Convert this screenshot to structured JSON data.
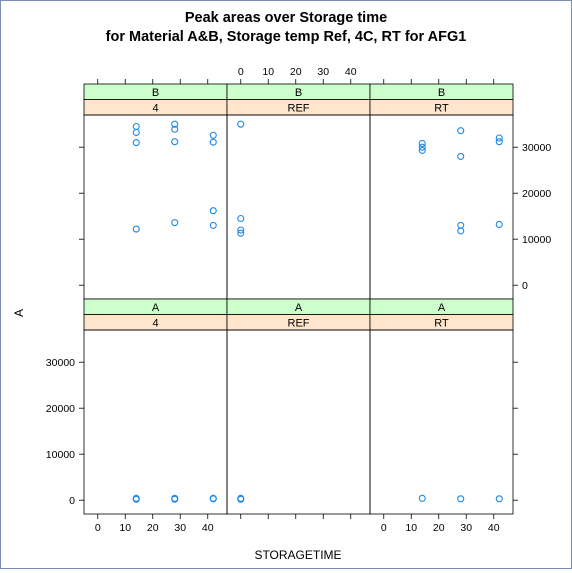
{
  "chart_data": {
    "type": "scatter",
    "title_line1": "Peak areas over Storage time",
    "title_line2": "for Material A&B, Storage temp Ref, 4C, RT for AFG1",
    "xlabel": "STORAGETIME",
    "ylabel": "A",
    "xlim": [
      -5,
      47
    ],
    "ylim": [
      -3000,
      37000
    ],
    "x_ticks": [
      0,
      10,
      20,
      30,
      40
    ],
    "y_ticks": [
      0,
      10000,
      20000,
      30000
    ],
    "strip_colors": {
      "material": "#ccffcc",
      "temp": "#ffe5cc"
    },
    "point_color": "#1e88e5",
    "panels": [
      {
        "material": "B",
        "temp": "4",
        "row": "top",
        "col": 0,
        "points": [
          [
            14,
            34500
          ],
          [
            14,
            33200
          ],
          [
            14,
            31000
          ],
          [
            28,
            35000
          ],
          [
            28,
            33900
          ],
          [
            28,
            31200
          ],
          [
            42,
            32600
          ],
          [
            42,
            31100
          ],
          [
            14,
            12200
          ],
          [
            28,
            13600
          ],
          [
            42,
            16200
          ],
          [
            42,
            13000
          ]
        ]
      },
      {
        "material": "B",
        "temp": "REF",
        "row": "top",
        "col": 1,
        "points": [
          [
            0,
            35000
          ],
          [
            0,
            14500
          ],
          [
            0,
            12000
          ],
          [
            0,
            11300
          ]
        ]
      },
      {
        "material": "B",
        "temp": "RT",
        "row": "top",
        "col": 2,
        "points": [
          [
            14,
            30800
          ],
          [
            14,
            30000
          ],
          [
            14,
            29300
          ],
          [
            28,
            33600
          ],
          [
            28,
            28000
          ],
          [
            42,
            32000
          ],
          [
            42,
            31200
          ],
          [
            28,
            13000
          ],
          [
            28,
            11800
          ],
          [
            42,
            13200
          ]
        ]
      },
      {
        "material": "A",
        "temp": "4",
        "row": "bottom",
        "col": 0,
        "points": [
          [
            14,
            400
          ],
          [
            14,
            200
          ],
          [
            28,
            400
          ],
          [
            28,
            200
          ],
          [
            42,
            400
          ],
          [
            42,
            300
          ]
        ]
      },
      {
        "material": "A",
        "temp": "REF",
        "row": "bottom",
        "col": 1,
        "points": [
          [
            0,
            400
          ],
          [
            0,
            200
          ]
        ]
      },
      {
        "material": "A",
        "temp": "RT",
        "row": "bottom",
        "col": 2,
        "points": [
          [
            14,
            400
          ],
          [
            28,
            300
          ],
          [
            42,
            300
          ]
        ]
      }
    ]
  }
}
